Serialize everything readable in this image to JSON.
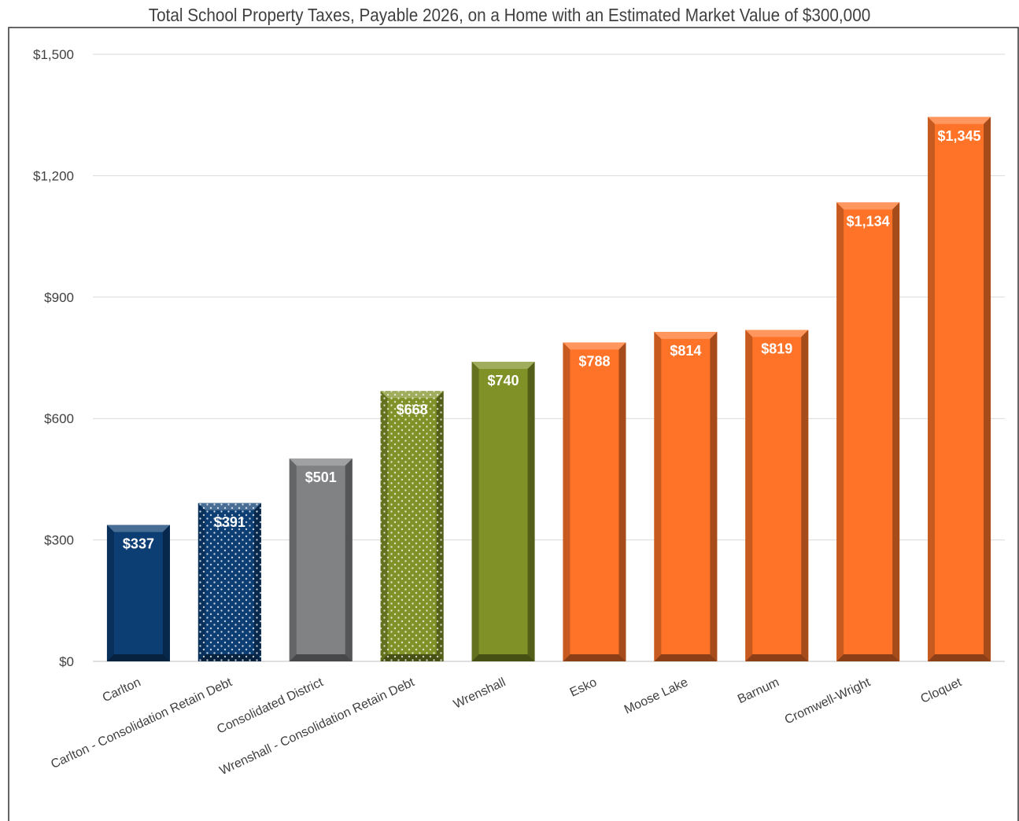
{
  "chart_data": {
    "type": "bar",
    "title": "Total School Property Taxes, Payable 2026, on a Home with an Estimated Market Value of $300,000",
    "xlabel": "",
    "ylabel": "",
    "ylim": [
      0,
      1500
    ],
    "yticks": [
      0,
      300,
      600,
      900,
      1200,
      1500
    ],
    "ytick_labels": [
      "$0",
      "$300",
      "$600",
      "$900",
      "$1,200",
      "$1,500"
    ],
    "grid": true,
    "legend": "none",
    "categories": [
      "Carlton",
      "Carlton - Consolidation Retain Debt",
      "Consolidated District",
      "Wrenshall - Consolidation Retain Debt",
      "Wrenshall",
      "Esko",
      "Moose Lake",
      "Barnum",
      "Cromwell-Wright",
      "Cloquet"
    ],
    "values": [
      337,
      391,
      501,
      668,
      740,
      788,
      814,
      819,
      1134,
      1345
    ],
    "data_labels": [
      "$337",
      "$391",
      "$501",
      "$668",
      "$740",
      "$788",
      "$814",
      "$819",
      "$1,134",
      "$1,345"
    ],
    "bar_colors": [
      "#0c3d73",
      "#0c3d73",
      "#808284",
      "#809127",
      "#809127",
      "#ff7328",
      "#ff7328",
      "#ff7328",
      "#ff7328",
      "#ff7328"
    ],
    "bar_patterns": [
      "solid",
      "dotted",
      "solid",
      "dotted",
      "solid",
      "solid",
      "solid",
      "solid",
      "solid",
      "solid"
    ]
  }
}
